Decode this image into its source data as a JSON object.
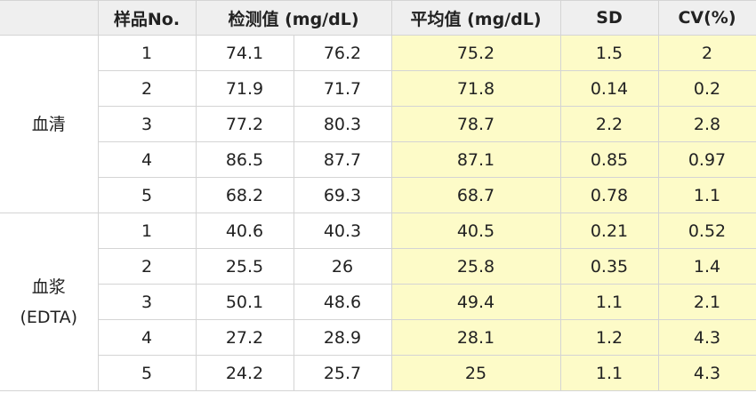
{
  "table": {
    "headers": {
      "blank": "",
      "sample": "样品No.",
      "measured": "检测值 (mg/dL)",
      "mean": "平均值 (mg/dL)",
      "sd": "SD",
      "cv": "CV(%)"
    },
    "groups": [
      {
        "label_lines": [
          "血清"
        ],
        "rows": [
          {
            "no": "1",
            "m1": "74.1",
            "m2": "76.2",
            "mean": "75.2",
            "sd": "1.5",
            "cv": "2"
          },
          {
            "no": "2",
            "m1": "71.9",
            "m2": "71.7",
            "mean": "71.8",
            "sd": "0.14",
            "cv": "0.2"
          },
          {
            "no": "3",
            "m1": "77.2",
            "m2": "80.3",
            "mean": "78.7",
            "sd": "2.2",
            "cv": "2.8"
          },
          {
            "no": "4",
            "m1": "86.5",
            "m2": "87.7",
            "mean": "87.1",
            "sd": "0.85",
            "cv": "0.97"
          },
          {
            "no": "5",
            "m1": "68.2",
            "m2": "69.3",
            "mean": "68.7",
            "sd": "0.78",
            "cv": "1.1"
          }
        ]
      },
      {
        "label_lines": [
          "血浆",
          "(EDTA)"
        ],
        "rows": [
          {
            "no": "1",
            "m1": "40.6",
            "m2": "40.3",
            "mean": "40.5",
            "sd": "0.21",
            "cv": "0.52"
          },
          {
            "no": "2",
            "m1": "25.5",
            "m2": "26",
            "mean": "25.8",
            "sd": "0.35",
            "cv": "1.4"
          },
          {
            "no": "3",
            "m1": "50.1",
            "m2": "48.6",
            "mean": "49.4",
            "sd": "1.1",
            "cv": "2.1"
          },
          {
            "no": "4",
            "m1": "27.2",
            "m2": "28.9",
            "mean": "28.1",
            "sd": "1.2",
            "cv": "4.3"
          },
          {
            "no": "5",
            "m1": "24.2",
            "m2": "25.7",
            "mean": "25",
            "sd": "1.1",
            "cv": "4.3"
          }
        ]
      }
    ]
  },
  "colors": {
    "header_bg": "#efefef",
    "highlight_bg": "#fdfbc8",
    "border": "#d4d4d4"
  }
}
